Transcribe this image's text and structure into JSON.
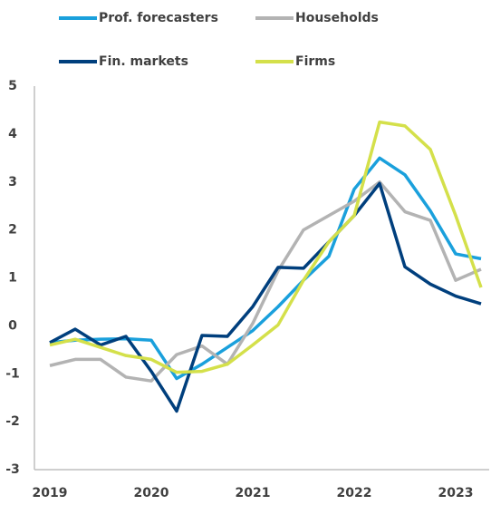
{
  "chart_data": {
    "type": "line",
    "categories": [
      "2019",
      null,
      null,
      null,
      "2020",
      null,
      null,
      null,
      "2021",
      null,
      null,
      null,
      "2022",
      null,
      null,
      null,
      "2023",
      null
    ],
    "series": [
      {
        "name": "Prof. forecasters",
        "color": "#1aa0dc",
        "values": [
          -0.35,
          -0.3,
          -0.28,
          -0.27,
          -0.3,
          -1.1,
          -0.8,
          -0.45,
          -0.1,
          0.4,
          0.95,
          1.45,
          2.85,
          3.5,
          3.15,
          2.4,
          1.5,
          1.4
        ]
      },
      {
        "name": "Households",
        "color": "#b3b3b3",
        "values": [
          -0.83,
          -0.7,
          -0.7,
          -1.07,
          -1.15,
          -0.6,
          -0.42,
          -0.8,
          0.05,
          1.15,
          2.0,
          2.3,
          2.6,
          3.0,
          2.38,
          2.2,
          0.95,
          1.18
        ]
      },
      {
        "name": "Fin. markets",
        "color": "#003f7d",
        "values": [
          -0.35,
          -0.07,
          -0.4,
          -0.22,
          -0.95,
          -1.78,
          -0.2,
          -0.22,
          0.4,
          1.22,
          1.2,
          1.75,
          2.3,
          2.97,
          1.23,
          0.87,
          0.62,
          0.46
        ]
      },
      {
        "name": "Firms",
        "color": "#d4e04a",
        "values": [
          -0.4,
          -0.28,
          -0.45,
          -0.62,
          -0.7,
          -0.97,
          -0.95,
          -0.8,
          -0.4,
          0.02,
          0.95,
          1.75,
          2.3,
          4.25,
          4.17,
          3.68,
          2.3,
          0.8
        ]
      }
    ],
    "ylim": [
      -3,
      5
    ],
    "yticks": [
      -3,
      -2,
      -1,
      0,
      1,
      2,
      3,
      4,
      5
    ],
    "grid": false
  }
}
